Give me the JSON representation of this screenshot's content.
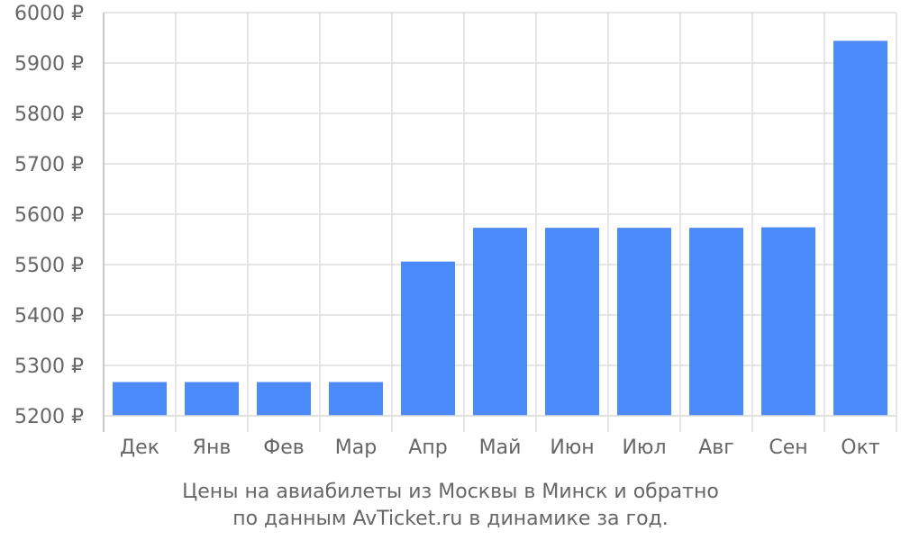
{
  "chart_data": {
    "type": "bar",
    "categories": [
      "Дек",
      "Янв",
      "Фев",
      "Мар",
      "Апр",
      "Май",
      "Июн",
      "Июл",
      "Авг",
      "Сен",
      "Окт"
    ],
    "values": [
      5267,
      5267,
      5267,
      5267,
      5506,
      5573,
      5573,
      5573,
      5573,
      5574,
      5944
    ],
    "ylim": [
      5200,
      6000
    ],
    "yticks": [
      5200,
      5300,
      5400,
      5500,
      5600,
      5700,
      5800,
      5900,
      6000
    ],
    "ytick_suffix": " ₽",
    "grid": true,
    "bar_color": "#4d8af9",
    "grid_color": "#dddddd",
    "text_color": "#666666"
  },
  "caption": {
    "line1": "Цены на авиабилеты из Москвы в Минск и обратно",
    "line2": "по данным AvTicket.ru в динамике за год."
  }
}
